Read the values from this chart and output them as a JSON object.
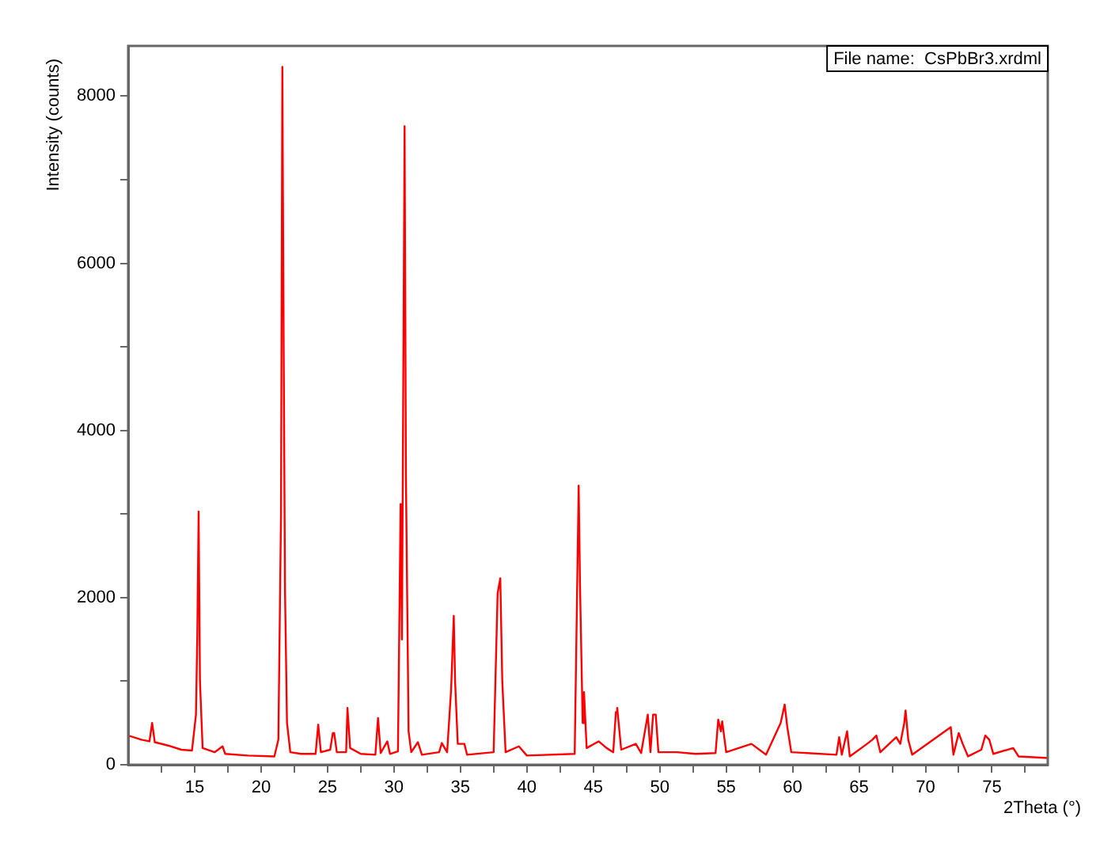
{
  "chart_data": {
    "type": "line",
    "xlabel": "2Theta (°)",
    "ylabel": "Intensity (counts)",
    "annotations": [
      "File name:  CsPbBr3.xrdml"
    ],
    "xlim": [
      10,
      79.2
    ],
    "ylim": [
      0,
      8600
    ],
    "xticks": [
      {
        "value": 12.5,
        "label": null
      },
      15,
      {
        "value": 17.5,
        "label": null
      },
      20,
      {
        "value": 22.5,
        "label": null
      },
      25,
      {
        "value": 27.5,
        "label": null
      },
      30,
      {
        "value": 32.5,
        "label": null
      },
      35,
      {
        "value": 37.5,
        "label": null
      },
      40,
      {
        "value": 42.5,
        "label": null
      },
      45,
      {
        "value": 47.5,
        "label": null
      },
      50,
      {
        "value": 52.5,
        "label": null
      },
      55,
      {
        "value": 57.5,
        "label": null
      },
      60,
      {
        "value": 62.5,
        "label": null
      },
      65,
      {
        "value": 67.5,
        "label": null
      },
      70,
      {
        "value": 72.5,
        "label": null
      },
      75,
      {
        "value": 77.5,
        "label": null
      }
    ],
    "yticks": [
      0,
      {
        "value": 1000,
        "label": null
      },
      2000,
      {
        "value": 3000,
        "label": null
      },
      4000,
      {
        "value": 5000,
        "label": null
      },
      6000,
      {
        "value": 7000,
        "label": null
      },
      8000
    ],
    "grid": false,
    "legend": false,
    "marker": "none",
    "line_style": "solid",
    "series": [
      {
        "color": "#ff0000",
        "x": [
          10,
          11,
          11.6,
          11.8,
          12,
          13,
          14,
          14.8,
          15.1,
          15.2,
          15.3,
          15.4,
          15.6,
          16.5,
          17.1,
          17.3,
          19,
          21,
          21.3,
          21.5,
          21.6,
          21.7,
          21.8,
          21.95,
          22.2,
          23,
          24.1,
          24.3,
          24.5,
          25.2,
          25.4,
          25.5,
          25.7,
          26.4,
          26.5,
          26.7,
          27.5,
          28.6,
          28.8,
          29,
          29.5,
          29.7,
          30.3,
          30.5,
          30.6,
          30.8,
          30.9,
          31.1,
          31.3,
          31.8,
          32.1,
          33.4,
          33.6,
          34,
          34.3,
          34.5,
          34.6,
          34.8,
          35.3,
          35.5,
          37.5,
          37.8,
          38,
          38.15,
          38.4,
          39.4,
          40,
          43.6,
          43.9,
          44,
          44.2,
          44.3,
          44.5,
          45.4,
          46,
          46.5,
          46.7,
          46.8,
          47.1,
          48.2,
          48.6,
          49.1,
          49.3,
          49.5,
          49.7,
          49.9,
          51.3,
          52.7,
          54.2,
          54.4,
          54.6,
          54.7,
          55,
          56.9,
          58,
          59.1,
          59.4,
          59.6,
          59.9,
          63.3,
          63.5,
          63.7,
          64.1,
          64.3,
          65.6,
          66,
          66.3,
          66.6,
          67.8,
          68.1,
          68.4,
          68.5,
          68.7,
          69,
          71.9,
          72.1,
          72.5,
          72.8,
          73.2,
          74.2,
          74.5,
          74.8,
          75.1,
          76.6,
          77,
          79.2
        ],
        "values": [
          350,
          300,
          280,
          500,
          270,
          230,
          180,
          170,
          600,
          1550,
          3030,
          1000,
          200,
          150,
          220,
          130,
          110,
          100,
          300,
          3000,
          8350,
          5000,
          2080,
          500,
          150,
          130,
          130,
          480,
          150,
          180,
          380,
          380,
          150,
          150,
          680,
          200,
          130,
          120,
          560,
          140,
          280,
          130,
          160,
          3120,
          1500,
          7640,
          3450,
          400,
          150,
          270,
          120,
          150,
          260,
          150,
          900,
          1780,
          1000,
          250,
          250,
          120,
          150,
          2050,
          2230,
          1000,
          150,
          220,
          110,
          130,
          3340,
          2150,
          500,
          870,
          200,
          280,
          200,
          150,
          630,
          680,
          180,
          250,
          140,
          600,
          150,
          600,
          600,
          150,
          150,
          130,
          140,
          540,
          400,
          520,
          150,
          250,
          120,
          500,
          720,
          450,
          150,
          120,
          330,
          120,
          400,
          100,
          250,
          300,
          350,
          150,
          330,
          250,
          500,
          650,
          300,
          120,
          450,
          120,
          380,
          250,
          100,
          180,
          350,
          300,
          130,
          200,
          100,
          80
        ]
      }
    ]
  }
}
